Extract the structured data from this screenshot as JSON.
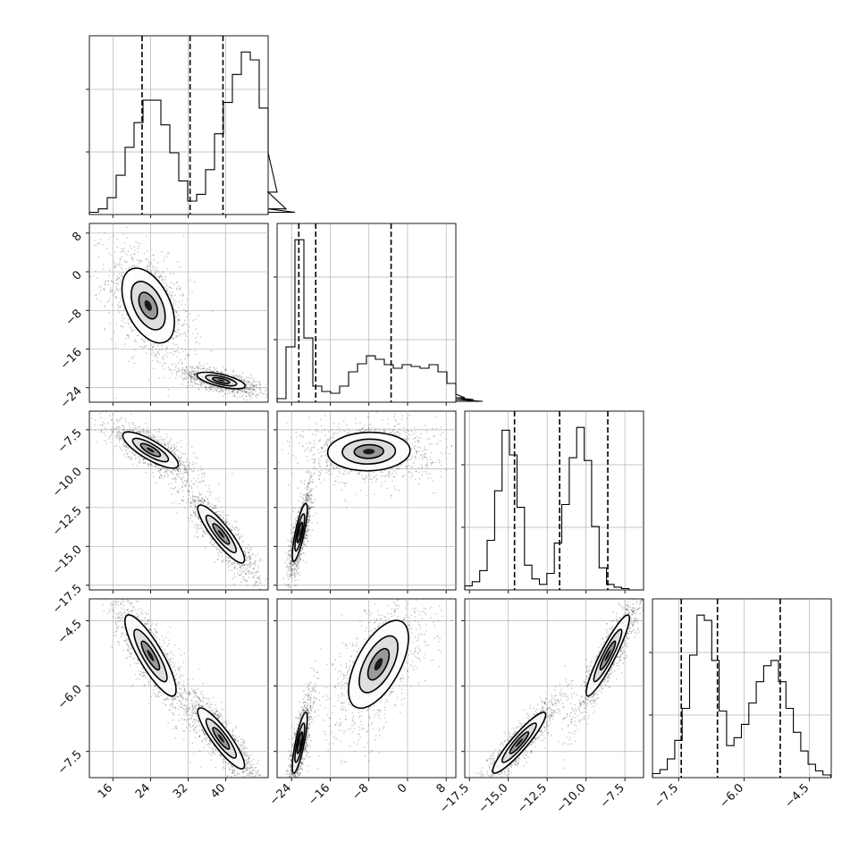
{
  "chart_data": {
    "type": "corner",
    "parameters": [
      {
        "range": [
          11,
          49
        ],
        "ticks": [
          16,
          24,
          32,
          40
        ],
        "tick_labels": [
          "16",
          "24",
          "32",
          "40"
        ],
        "hist": {
          "edges_start": 11,
          "bin_width": 1.9,
          "counts": [
            2,
            5,
            15,
            35,
            60,
            82,
            102,
            102,
            80,
            55,
            30,
            12,
            18,
            40,
            72,
            100,
            125,
            145,
            138,
            95,
            55,
            20,
            5,
            2
          ]
        },
        "quantiles": [
          22.2,
          32.4,
          39.4
        ]
      },
      {
        "range": [
          -27,
          10
        ],
        "ticks": [
          -24,
          -16,
          -8,
          0,
          8
        ],
        "tick_labels": [
          "−24",
          "−16",
          "−8",
          "0",
          "8"
        ],
        "hist": {
          "edges_start": -27,
          "bin_width": 1.85,
          "counts": [
            4,
            62,
            182,
            72,
            18,
            12,
            10,
            18,
            34,
            43,
            52,
            48,
            42,
            38,
            42,
            40,
            38,
            42,
            34,
            21,
            9,
            5,
            3,
            1
          ]
        },
        "quantiles": [
          -22.5,
          -19.0,
          -3.4
        ]
      },
      {
        "range": [
          -17.8,
          -6.3
        ],
        "ticks": [
          -17.5,
          -15.0,
          -12.5,
          -10.0,
          -7.5
        ],
        "tick_labels": [
          "−17.5",
          "−15.0",
          "−12.5",
          "−10.0",
          "−7.5"
        ],
        "hist": {
          "edges_start": -17.8,
          "bin_width": 0.48,
          "counts": [
            3,
            6,
            14,
            36,
            72,
            116,
            98,
            60,
            18,
            8,
            4,
            12,
            34,
            62,
            96,
            118,
            94,
            46,
            16,
            4,
            2,
            1,
            0,
            0
          ]
        },
        "quantiles": [
          -14.6,
          -11.7,
          -8.6
        ]
      },
      {
        "range": [
          -8.1,
          -4.0
        ],
        "ticks": [
          -7.5,
          -6.0,
          -4.5
        ],
        "tick_labels": [
          "−7.5",
          "−6.0",
          "−4.5"
        ],
        "hist": {
          "edges_start": -8.1,
          "bin_width": 0.17,
          "counts": [
            3,
            6,
            14,
            28,
            52,
            92,
            122,
            118,
            88,
            50,
            24,
            30,
            40,
            56,
            72,
            84,
            88,
            72,
            52,
            34,
            20,
            10,
            5,
            2
          ]
        },
        "quantiles": [
          -7.44,
          -6.61,
          -5.17
        ]
      }
    ],
    "quantile_style": "dashed",
    "grid": true,
    "pair_panels": [
      {
        "row": 1,
        "col": 0,
        "modes": [
          {
            "mx": 23.5,
            "my": -7,
            "sx": 3.6,
            "sy": 5.0,
            "rho": -0.45,
            "w": 0.5
          },
          {
            "mx": 39,
            "my": -22.5,
            "sx": 3.3,
            "sy": 1.1,
            "rho": -0.65,
            "w": 0.5
          }
        ]
      },
      {
        "row": 2,
        "col": 0,
        "modes": [
          {
            "mx": 24,
            "my": -8.8,
            "sx": 3.8,
            "sy": 0.75,
            "rho": -0.8,
            "w": 0.5
          },
          {
            "mx": 39,
            "my": -14.2,
            "sx": 3.2,
            "sy": 1.2,
            "rho": -0.88,
            "w": 0.5
          }
        ]
      },
      {
        "row": 2,
        "col": 1,
        "modes": [
          {
            "mx": -8,
            "my": -8.9,
            "sx": 5.5,
            "sy": 0.8,
            "rho": 0.05,
            "w": 0.5
          },
          {
            "mx": -22.3,
            "my": -14.1,
            "sx": 1.0,
            "sy": 1.2,
            "rho": 0.8,
            "w": 0.5
          }
        ]
      },
      {
        "row": 3,
        "col": 0,
        "modes": [
          {
            "mx": 24,
            "my": -5.3,
            "sx": 3.5,
            "sy": 0.6,
            "rho": -0.85,
            "w": 0.5
          },
          {
            "mx": 39,
            "my": -7.2,
            "sx": 3.2,
            "sy": 0.45,
            "rho": -0.88,
            "w": 0.5
          }
        ]
      },
      {
        "row": 3,
        "col": 1,
        "modes": [
          {
            "mx": -6,
            "my": -5.5,
            "sx": 4.0,
            "sy": 0.65,
            "rho": 0.6,
            "w": 0.5
          },
          {
            "mx": -22.3,
            "my": -7.3,
            "sx": 1.0,
            "sy": 0.45,
            "rho": 0.8,
            "w": 0.5
          }
        ]
      },
      {
        "row": 3,
        "col": 2,
        "modes": [
          {
            "mx": -8.6,
            "my": -5.3,
            "sx": 0.9,
            "sy": 0.6,
            "rho": 0.92,
            "w": 0.5
          },
          {
            "mx": -14.3,
            "my": -7.3,
            "sx": 1.1,
            "sy": 0.45,
            "rho": 0.92,
            "w": 0.5
          }
        ]
      }
    ]
  }
}
